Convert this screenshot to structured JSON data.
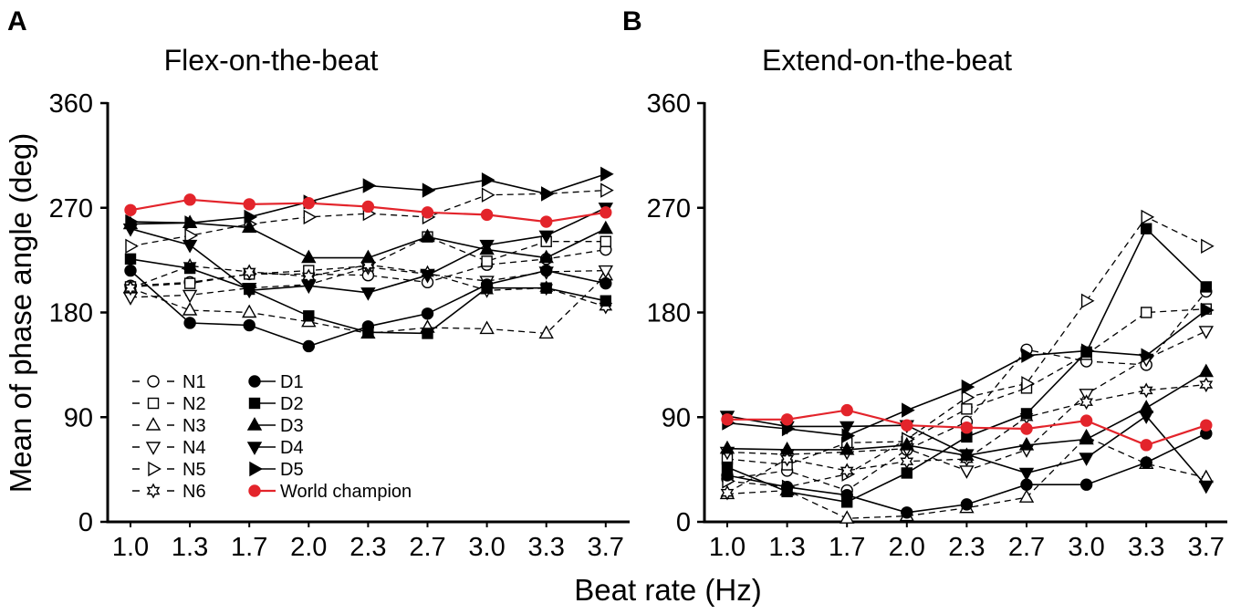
{
  "legend": [
    {
      "name": "N1",
      "marker": "open-circle-icon",
      "dashed": true,
      "color": "#000000"
    },
    {
      "name": "N2",
      "marker": "open-square-icon",
      "dashed": true,
      "color": "#000000"
    },
    {
      "name": "N3",
      "marker": "open-triangle-up-icon",
      "dashed": true,
      "color": "#000000"
    },
    {
      "name": "N4",
      "marker": "open-triangle-down-icon",
      "dashed": true,
      "color": "#000000"
    },
    {
      "name": "N5",
      "marker": "open-triangle-right-icon",
      "dashed": true,
      "color": "#000000"
    },
    {
      "name": "N6",
      "marker": "open-star-icon",
      "dashed": true,
      "color": "#000000"
    },
    {
      "name": "D1",
      "marker": "filled-circle-icon",
      "dashed": false,
      "color": "#000000"
    },
    {
      "name": "D2",
      "marker": "filled-square-icon",
      "dashed": false,
      "color": "#000000"
    },
    {
      "name": "D3",
      "marker": "filled-triangle-up-icon",
      "dashed": false,
      "color": "#000000"
    },
    {
      "name": "D4",
      "marker": "filled-triangle-down-icon",
      "dashed": false,
      "color": "#000000"
    },
    {
      "name": "D5",
      "marker": "filled-triangle-right-icon",
      "dashed": false,
      "color": "#000000"
    },
    {
      "name": "World champion",
      "marker": "filled-circle-icon",
      "dashed": false,
      "color": "#e3242b"
    }
  ],
  "chart_data": [
    {
      "type": "line",
      "panel": "A",
      "title": "Flex-on-the-beat",
      "xlabel": "Beat rate (Hz)",
      "ylabel": "Mean of phase angle (deg)",
      "categories": [
        "1.0",
        "1.3",
        "1.7",
        "2.0",
        "2.3",
        "2.7",
        "3.0",
        "3.3",
        "3.7"
      ],
      "ylim": [
        0,
        360
      ],
      "y_ticks": [
        0,
        90,
        180,
        270,
        360
      ],
      "series": [
        {
          "name": "N1",
          "values": [
            203,
            206,
            213,
            213,
            212,
            206,
            221,
            226,
            234
          ]
        },
        {
          "name": "N2",
          "values": [
            202,
            205,
            213,
            216,
            220,
            245,
            224,
            241,
            241
          ]
        },
        {
          "name": "N3",
          "values": [
            201,
            182,
            180,
            172,
            162,
            167,
            166,
            162,
            212
          ]
        },
        {
          "name": "N4",
          "values": [
            193,
            195,
            201,
            204,
            219,
            213,
            207,
            215,
            216
          ]
        },
        {
          "name": "N5",
          "values": [
            237,
            246,
            256,
            262,
            265,
            262,
            281,
            282,
            285
          ]
        },
        {
          "name": "N6",
          "values": [
            201,
            220,
            215,
            211,
            221,
            214,
            199,
            201,
            185
          ]
        },
        {
          "name": "D1",
          "values": [
            216,
            171,
            169,
            151,
            168,
            179,
            204,
            216,
            205
          ]
        },
        {
          "name": "D2",
          "values": [
            226,
            218,
            200,
            177,
            163,
            162,
            201,
            201,
            190
          ]
        },
        {
          "name": "D3",
          "values": [
            256,
            257,
            253,
            227,
            227,
            245,
            234,
            227,
            252
          ]
        },
        {
          "name": "D4",
          "values": [
            252,
            238,
            199,
            203,
            197,
            212,
            238,
            246,
            270
          ]
        },
        {
          "name": "D5",
          "values": [
            258,
            257,
            262,
            275,
            289,
            285,
            294,
            282,
            299
          ]
        },
        {
          "name": "World champion",
          "values": [
            268,
            277,
            273,
            274,
            271,
            266,
            264,
            258,
            266
          ]
        }
      ]
    },
    {
      "type": "line",
      "panel": "B",
      "title": "Extend-on-the-beat",
      "categories": [
        "1.0",
        "1.3",
        "1.7",
        "2.0",
        "2.3",
        "2.7",
        "3.0",
        "3.3",
        "3.7"
      ],
      "ylim": [
        0,
        360
      ],
      "y_ticks": [
        0,
        90,
        180,
        270,
        360
      ],
      "series": [
        {
          "name": "N1",
          "values": [
            37,
            44,
            27,
            62,
            86,
            148,
            138,
            135,
            198
          ]
        },
        {
          "name": "N2",
          "values": [
            54,
            49,
            68,
            69,
            97,
            115,
            144,
            180,
            183
          ]
        },
        {
          "name": "N3",
          "values": [
            24,
            27,
            3,
            5,
            12,
            21,
            73,
            50,
            38
          ]
        },
        {
          "name": "N4",
          "values": [
            60,
            58,
            60,
            63,
            44,
            62,
            110,
            140,
            164
          ]
        },
        {
          "name": "N5",
          "values": [
            35,
            30,
            41,
            71,
            107,
            119,
            190,
            262,
            237
          ]
        },
        {
          "name": "N6",
          "values": [
            25,
            54,
            44,
            52,
            54,
            90,
            103,
            113,
            118
          ]
        },
        {
          "name": "D1",
          "values": [
            40,
            30,
            23,
            8,
            15,
            32,
            32,
            51,
            76
          ]
        },
        {
          "name": "D2",
          "values": [
            47,
            26,
            17,
            42,
            73,
            93,
            146,
            252,
            202
          ]
        },
        {
          "name": "D3",
          "values": [
            63,
            62,
            62,
            66,
            57,
            66,
            71,
            98,
            129
          ]
        },
        {
          "name": "D4",
          "values": [
            91,
            82,
            82,
            83,
            58,
            42,
            55,
            91,
            31
          ]
        },
        {
          "name": "D5",
          "values": [
            85,
            80,
            74,
            96,
            116,
            143,
            147,
            143,
            182
          ]
        },
        {
          "name": "World champion",
          "values": [
            88,
            88,
            96,
            83,
            81,
            80,
            87,
            66,
            83
          ]
        }
      ]
    }
  ]
}
